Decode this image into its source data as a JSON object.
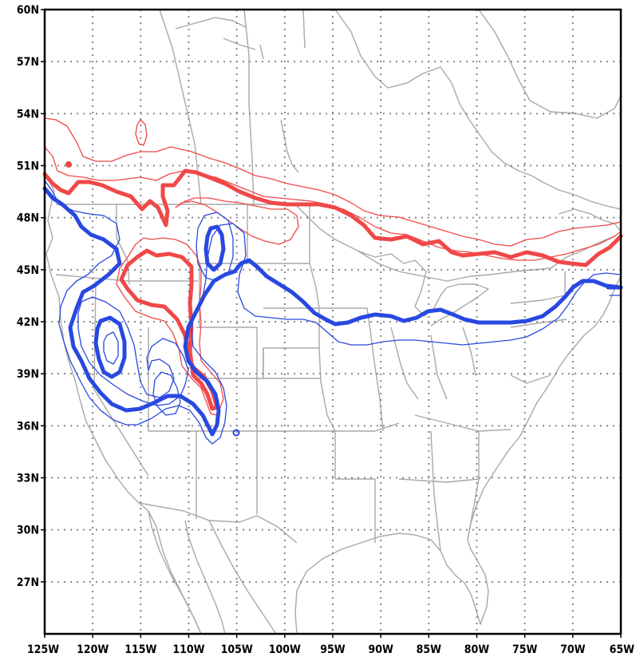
{
  "map": {
    "lon_range": [
      -125,
      -65
    ],
    "lat_range": [
      24,
      60
    ],
    "grid": true,
    "lat_ticks": [
      {
        "value": 60,
        "label": "60N"
      },
      {
        "value": 57,
        "label": "57N"
      },
      {
        "value": 54,
        "label": "54N"
      },
      {
        "value": 51,
        "label": "51N"
      },
      {
        "value": 48,
        "label": "48N"
      },
      {
        "value": 45,
        "label": "45N"
      },
      {
        "value": 42,
        "label": "42N"
      },
      {
        "value": 39,
        "label": "39N"
      },
      {
        "value": 36,
        "label": "36N"
      },
      {
        "value": 33,
        "label": "33N"
      },
      {
        "value": 30,
        "label": "30N"
      },
      {
        "value": 27,
        "label": "27N"
      }
    ],
    "lon_ticks": [
      {
        "value": -125,
        "label": "125W"
      },
      {
        "value": -120,
        "label": "120W"
      },
      {
        "value": -115,
        "label": "115W"
      },
      {
        "value": -110,
        "label": "110W"
      },
      {
        "value": -105,
        "label": "105W"
      },
      {
        "value": -100,
        "label": "100W"
      },
      {
        "value": -95,
        "label": "95W"
      },
      {
        "value": -90,
        "label": "90W"
      },
      {
        "value": -85,
        "label": "85W"
      },
      {
        "value": -80,
        "label": "80W"
      },
      {
        "value": -75,
        "label": "75W"
      },
      {
        "value": -70,
        "label": "70W"
      },
      {
        "value": -65,
        "label": "65W"
      }
    ],
    "colors": {
      "red_contour": "#f04848",
      "blue_contour": "#2848e0",
      "geography": "#a8a8a8",
      "grid": "#888888",
      "frame": "#000000"
    }
  }
}
